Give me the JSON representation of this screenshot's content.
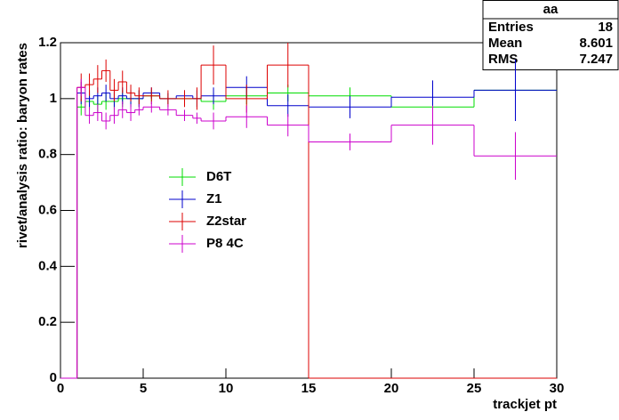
{
  "chart_data": {
    "type": "histogram",
    "x_label": "trackjet pt",
    "y_label": "rivet/analysis ratio: baryon rates",
    "bins": [
      0,
      1,
      1.5,
      2,
      2.5,
      3,
      3.5,
      4,
      4.5,
      5,
      6,
      7,
      8,
      8.5,
      10,
      12.5,
      15,
      20,
      25,
      30
    ],
    "series": [
      {
        "name": "D6T",
        "color": "#00dd00",
        "values": [
          0,
          0.97,
          0.99,
          0.98,
          0.99,
          0.99,
          1.0,
          1.0,
          1.0,
          1.01,
          1.0,
          1.0,
          1.0,
          0.99,
          1.01,
          1.02,
          1.01,
          0.97,
          1.03
        ],
        "errors": [
          0,
          0.03,
          0.03,
          0.03,
          0.03,
          0.03,
          0.03,
          0.03,
          0.03,
          0.02,
          0.02,
          0.02,
          0.03,
          0.03,
          0.03,
          0.03,
          0.03,
          0.03,
          0.04
        ]
      },
      {
        "name": "Z1",
        "color": "#0000cc",
        "values": [
          0,
          1.02,
          1.0,
          1.01,
          1.02,
          1.0,
          1.01,
          1.0,
          1.0,
          1.02,
          1.0,
          1.01,
          1.0,
          1.01,
          1.04,
          0.975,
          0.97,
          1.005,
          1.03
        ],
        "errors": [
          0,
          0.04,
          0.03,
          0.03,
          0.03,
          0.03,
          0.03,
          0.03,
          0.03,
          0.02,
          0.02,
          0.02,
          0.03,
          0.03,
          0.04,
          0.04,
          0.04,
          0.06,
          0.11
        ]
      },
      {
        "name": "Z2star",
        "color": "#dd0000",
        "values": [
          0,
          1.04,
          1.05,
          1.07,
          1.1,
          1.03,
          1.06,
          1.02,
          1.01,
          1.01,
          1.0,
          1.0,
          1.0,
          1.12,
          1.0,
          1.12,
          0,
          0,
          0
        ],
        "errors": [
          0,
          0.05,
          0.04,
          0.05,
          0.04,
          0.04,
          0.04,
          0.03,
          0.03,
          0.03,
          0.03,
          0.03,
          0.04,
          0.07,
          0.05,
          0.08,
          0,
          0,
          0
        ]
      },
      {
        "name": "P8 4C",
        "color": "#cc00cc",
        "values": [
          0,
          1.04,
          0.94,
          0.95,
          0.92,
          0.94,
          0.96,
          0.95,
          0.96,
          0.97,
          0.96,
          0.94,
          0.93,
          0.92,
          0.935,
          0.905,
          0.845,
          0.905,
          0.795
        ],
        "errors": [
          0,
          0.03,
          0.03,
          0.03,
          0.03,
          0.03,
          0.03,
          0.03,
          0.02,
          0.02,
          0.02,
          0.02,
          0.02,
          0.03,
          0.04,
          0.04,
          0.03,
          0.07,
          0.085
        ]
      }
    ],
    "xlim": [
      0,
      30
    ],
    "xticks": [
      0,
      5,
      10,
      15,
      20,
      25,
      30
    ],
    "ylim": [
      0,
      1.2
    ],
    "yticks": [
      0,
      0.2,
      0.4,
      0.6,
      0.8,
      1,
      1.2
    ],
    "stats": {
      "title": "aa",
      "rows": [
        [
          "Entries",
          "18"
        ],
        [
          "Mean",
          "8.601"
        ],
        [
          "RMS",
          "7.247"
        ]
      ]
    }
  }
}
